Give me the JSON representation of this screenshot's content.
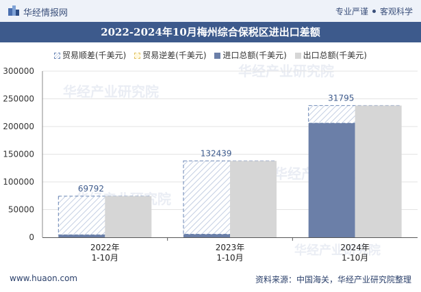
{
  "header": {
    "brand": "华经情报网",
    "tag1": "专业严谨",
    "tag2": "客观科学"
  },
  "footer": {
    "site": "www.huaon.com",
    "source": "资料来源：中国海关，华经产业研究院整理"
  },
  "watermark": "华经产业研究院",
  "colors": {
    "surplus_border": "#6a86b5",
    "import": "#6b7fa8",
    "export": "#d6d6d6",
    "title_bg": "#3d5a8c"
  },
  "chart_data": {
    "type": "bar",
    "title": "2022-2024年10月梅州综合保税区进出口差额",
    "categories": [
      "2022年\n1-10月",
      "2023年\n1-10月",
      "2024年\n1-10月"
    ],
    "series": [
      {
        "name": "贸易顺差(千美元)",
        "values": [
          69792,
          132439,
          31795
        ]
      },
      {
        "name": "贸易逆差(千美元)",
        "values": [
          0,
          0,
          0
        ]
      },
      {
        "name": "进口总额(千美元)",
        "values": [
          4500,
          5500,
          206000
        ]
      },
      {
        "name": "出口总额(千美元)",
        "values": [
          74292,
          137939,
          237795
        ]
      }
    ],
    "data_labels": [
      "69792",
      "132439",
      "31795"
    ],
    "ylim": [
      0,
      300000
    ],
    "yticks": [
      "0",
      "50000",
      "100000",
      "150000",
      "200000",
      "250000",
      "300000"
    ],
    "xlabel": "",
    "ylabel": ""
  }
}
